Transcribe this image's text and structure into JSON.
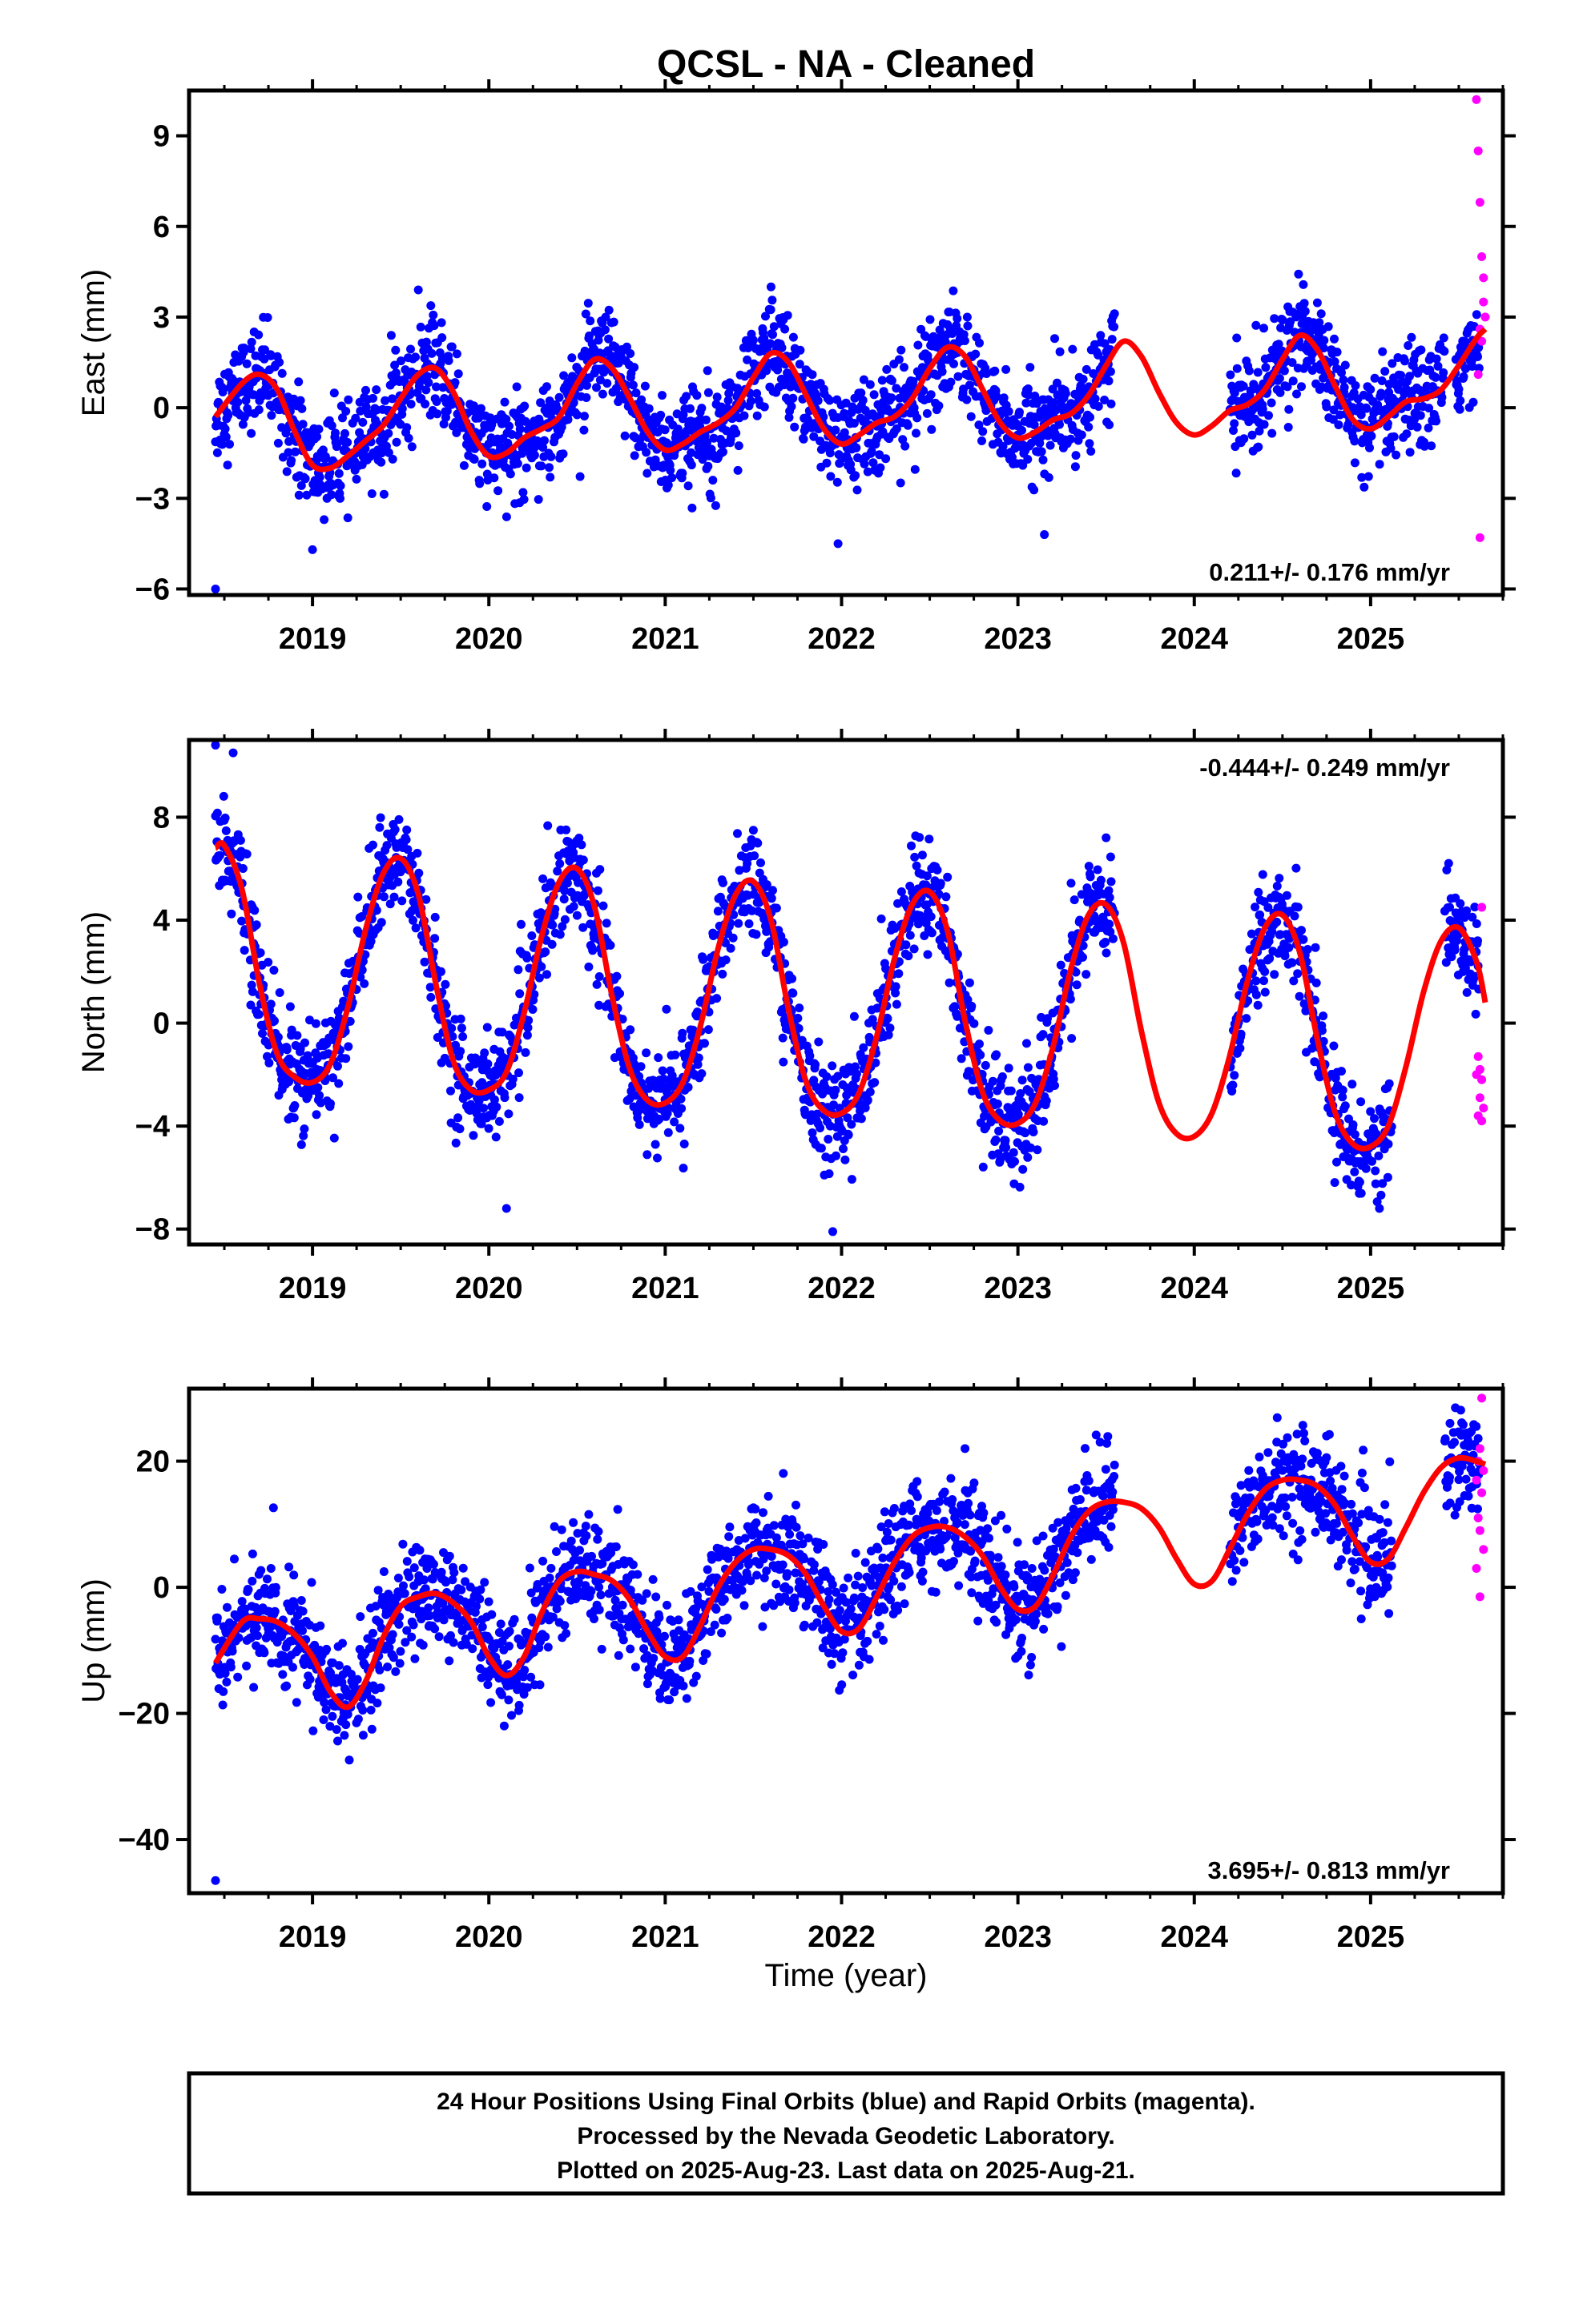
{
  "title": "QCSL  - NA - Cleaned",
  "xlabel": "Time (year)",
  "footer": {
    "line1": "24 Hour Positions Using Final Orbits (blue) and Rapid Orbits (magenta).",
    "line2": "Processed by the Nevada Geodetic Laboratory.",
    "line3": "Plotted on 2025-Aug-23. Last data on 2025-Aug-21."
  },
  "colors": {
    "final": "#0000ff",
    "rapid": "#ff00ff",
    "model": "#ff0000"
  },
  "chart_data": [
    {
      "type": "scatter",
      "name": "east",
      "ylabel": "East (mm)",
      "rate": "0.211+/- 0.176 mm/yr",
      "rate_position": "bottom-right",
      "xlim": [
        2018.3,
        2025.75
      ],
      "ylim": [
        -6.2,
        10.5
      ],
      "yticks": [
        -6,
        -3,
        0,
        3,
        6,
        9
      ],
      "ytick_labels": [
        "−6",
        "−3",
        "0",
        "3",
        "6",
        "9"
      ],
      "xticks": [
        2019,
        2020,
        2021,
        2022,
        2023,
        2024,
        2025
      ],
      "xtick_labels": [
        "2019",
        "2020",
        "2021",
        "2022",
        "2023",
        "2024",
        "2025"
      ],
      "model": [
        [
          2018.45,
          -0.3
        ],
        [
          2018.6,
          0.8
        ],
        [
          2018.7,
          1.1
        ],
        [
          2018.8,
          0.6
        ],
        [
          2018.9,
          -0.8
        ],
        [
          2019.0,
          -1.9
        ],
        [
          2019.1,
          -2.0
        ],
        [
          2019.2,
          -1.6
        ],
        [
          2019.3,
          -1.1
        ],
        [
          2019.4,
          -0.6
        ],
        [
          2019.5,
          0.3
        ],
        [
          2019.6,
          1.1
        ],
        [
          2019.7,
          1.3
        ],
        [
          2019.8,
          0.5
        ],
        [
          2019.9,
          -0.8
        ],
        [
          2020.0,
          -1.6
        ],
        [
          2020.1,
          -1.5
        ],
        [
          2020.2,
          -1.0
        ],
        [
          2020.3,
          -0.7
        ],
        [
          2020.4,
          -0.3
        ],
        [
          2020.5,
          0.8
        ],
        [
          2020.6,
          1.6
        ],
        [
          2020.7,
          1.3
        ],
        [
          2020.8,
          0.3
        ],
        [
          2020.9,
          -0.8
        ],
        [
          2021.0,
          -1.4
        ],
        [
          2021.1,
          -1.2
        ],
        [
          2021.2,
          -0.8
        ],
        [
          2021.3,
          -0.5
        ],
        [
          2021.4,
          0.0
        ],
        [
          2021.5,
          1.0
        ],
        [
          2021.6,
          1.8
        ],
        [
          2021.7,
          1.5
        ],
        [
          2021.8,
          0.4
        ],
        [
          2021.9,
          -0.7
        ],
        [
          2022.0,
          -1.2
        ],
        [
          2022.1,
          -0.9
        ],
        [
          2022.2,
          -0.5
        ],
        [
          2022.3,
          -0.3
        ],
        [
          2022.4,
          0.3
        ],
        [
          2022.5,
          1.3
        ],
        [
          2022.6,
          2.0
        ],
        [
          2022.7,
          1.7
        ],
        [
          2022.8,
          0.6
        ],
        [
          2022.9,
          -0.5
        ],
        [
          2023.0,
          -1.0
        ],
        [
          2023.1,
          -0.8
        ],
        [
          2023.2,
          -0.4
        ],
        [
          2023.3,
          -0.2
        ],
        [
          2023.4,
          0.4
        ],
        [
          2023.5,
          1.4
        ],
        [
          2023.6,
          2.2
        ],
        [
          2023.7,
          1.7
        ],
        [
          2023.8,
          0.5
        ],
        [
          2023.9,
          -0.5
        ],
        [
          2024.0,
          -0.9
        ],
        [
          2024.1,
          -0.6
        ],
        [
          2024.2,
          -0.1
        ],
        [
          2024.3,
          0.1
        ],
        [
          2024.4,
          0.6
        ],
        [
          2024.5,
          1.6
        ],
        [
          2024.6,
          2.4
        ],
        [
          2024.7,
          1.9
        ],
        [
          2024.8,
          0.7
        ],
        [
          2024.9,
          -0.4
        ],
        [
          2025.0,
          -0.7
        ],
        [
          2025.1,
          -0.3
        ],
        [
          2025.2,
          0.2
        ],
        [
          2025.3,
          0.3
        ],
        [
          2025.4,
          0.6
        ],
        [
          2025.5,
          1.4
        ],
        [
          2025.6,
          2.3
        ],
        [
          2025.65,
          2.6
        ]
      ],
      "gaps": [
        [
          2023.55,
          2024.2
        ],
        [
          2025.42,
          2025.48
        ]
      ],
      "noise": 0.8,
      "outliers": [
        [
          2018.45,
          -6.0
        ],
        [
          2019.0,
          -4.7
        ],
        [
          2021.98,
          -4.5
        ],
        [
          2023.15,
          -4.2
        ],
        [
          2019.6,
          3.9
        ],
        [
          2021.6,
          4.0
        ]
      ],
      "rapid": [
        [
          2025.6,
          10.2
        ],
        [
          2025.61,
          8.5
        ],
        [
          2025.62,
          6.8
        ],
        [
          2025.63,
          5.0
        ],
        [
          2025.64,
          4.3
        ],
        [
          2025.64,
          3.5
        ],
        [
          2025.65,
          3.0
        ],
        [
          2025.62,
          2.6
        ],
        [
          2025.63,
          2.2
        ],
        [
          2025.61,
          1.1
        ],
        [
          2025.62,
          -4.3
        ]
      ]
    },
    {
      "type": "scatter",
      "name": "north",
      "ylabel": "North (mm)",
      "rate": "-0.444+/- 0.249 mm/yr",
      "rate_position": "top-right",
      "xlim": [
        2018.3,
        2025.75
      ],
      "ylim": [
        -8.6,
        11.0
      ],
      "yticks": [
        -8,
        -4,
        0,
        4,
        8
      ],
      "ytick_labels": [
        "−8",
        "−4",
        "0",
        "4",
        "8"
      ],
      "xticks": [
        2019,
        2020,
        2021,
        2022,
        2023,
        2024,
        2025
      ],
      "xtick_labels": [
        "2019",
        "2020",
        "2021",
        "2022",
        "2023",
        "2024",
        "2025"
      ],
      "model": [
        [
          2018.45,
          6.8
        ],
        [
          2018.5,
          6.9
        ],
        [
          2018.6,
          5.2
        ],
        [
          2018.7,
          1.5
        ],
        [
          2018.8,
          -1.2
        ],
        [
          2018.9,
          -2.1
        ],
        [
          2019.0,
          -2.3
        ],
        [
          2019.1,
          -1.6
        ],
        [
          2019.2,
          0.6
        ],
        [
          2019.3,
          3.6
        ],
        [
          2019.4,
          5.8
        ],
        [
          2019.5,
          6.4
        ],
        [
          2019.6,
          5.0
        ],
        [
          2019.7,
          1.5
        ],
        [
          2019.8,
          -1.5
        ],
        [
          2019.9,
          -2.6
        ],
        [
          2020.0,
          -2.6
        ],
        [
          2020.1,
          -1.9
        ],
        [
          2020.2,
          0.4
        ],
        [
          2020.3,
          3.4
        ],
        [
          2020.4,
          5.5
        ],
        [
          2020.5,
          6.0
        ],
        [
          2020.6,
          4.5
        ],
        [
          2020.7,
          1.0
        ],
        [
          2020.8,
          -1.8
        ],
        [
          2020.9,
          -3.0
        ],
        [
          2021.0,
          -3.1
        ],
        [
          2021.1,
          -2.3
        ],
        [
          2021.2,
          -0.1
        ],
        [
          2021.3,
          2.9
        ],
        [
          2021.4,
          5.0
        ],
        [
          2021.5,
          5.5
        ],
        [
          2021.6,
          4.0
        ],
        [
          2021.7,
          0.5
        ],
        [
          2021.8,
          -2.3
        ],
        [
          2021.9,
          -3.4
        ],
        [
          2022.0,
          -3.5
        ],
        [
          2022.1,
          -2.7
        ],
        [
          2022.2,
          -0.5
        ],
        [
          2022.3,
          2.5
        ],
        [
          2022.4,
          4.6
        ],
        [
          2022.5,
          5.1
        ],
        [
          2022.6,
          3.6
        ],
        [
          2022.7,
          0.1
        ],
        [
          2022.8,
          -2.7
        ],
        [
          2022.9,
          -3.8
        ],
        [
          2023.0,
          -3.9
        ],
        [
          2023.1,
          -3.1
        ],
        [
          2023.2,
          -0.9
        ],
        [
          2023.3,
          2.1
        ],
        [
          2023.4,
          4.2
        ],
        [
          2023.5,
          4.6
        ],
        [
          2023.6,
          3.1
        ],
        [
          2023.7,
          -0.3
        ],
        [
          2023.8,
          -3.1
        ],
        [
          2023.9,
          -4.3
        ],
        [
          2024.0,
          -4.4
        ],
        [
          2024.1,
          -3.5
        ],
        [
          2024.2,
          -1.3
        ],
        [
          2024.3,
          1.6
        ],
        [
          2024.4,
          3.7
        ],
        [
          2024.5,
          4.2
        ],
        [
          2024.6,
          2.7
        ],
        [
          2024.7,
          -0.7
        ],
        [
          2024.8,
          -3.5
        ],
        [
          2024.9,
          -4.7
        ],
        [
          2025.0,
          -4.8
        ],
        [
          2025.1,
          -4.0
        ],
        [
          2025.2,
          -1.7
        ],
        [
          2025.3,
          1.2
        ],
        [
          2025.4,
          3.2
        ],
        [
          2025.5,
          3.7
        ],
        [
          2025.6,
          2.4
        ],
        [
          2025.65,
          0.8
        ]
      ],
      "gaps": [
        [
          2023.55,
          2024.2
        ],
        [
          2025.12,
          2025.42
        ]
      ],
      "noise": 1.0,
      "outliers": [
        [
          2018.45,
          10.8
        ],
        [
          2018.55,
          10.5
        ],
        [
          2020.1,
          -7.2
        ],
        [
          2021.95,
          -8.1
        ],
        [
          2025.05,
          -7.2
        ],
        [
          2023.5,
          7.2
        ]
      ],
      "rapid": [
        [
          2025.63,
          4.5
        ],
        [
          2025.61,
          -1.3
        ],
        [
          2025.62,
          -1.8
        ],
        [
          2025.6,
          -2.0
        ],
        [
          2025.63,
          -2.2
        ],
        [
          2025.62,
          -2.9
        ],
        [
          2025.64,
          -3.3
        ],
        [
          2025.61,
          -3.6
        ],
        [
          2025.63,
          -3.8
        ]
      ]
    },
    {
      "type": "scatter",
      "name": "up",
      "ylabel": "Up (mm)",
      "rate": "3.695+/- 0.813 mm/yr",
      "rate_position": "bottom-right",
      "xlim": [
        2018.3,
        2025.75
      ],
      "ylim": [
        -48.5,
        31.5
      ],
      "yticks": [
        -40,
        -20,
        0,
        20
      ],
      "ytick_labels": [
        "−40",
        "−20",
        "0",
        "20"
      ],
      "xticks": [
        2019,
        2020,
        2021,
        2022,
        2023,
        2024,
        2025
      ],
      "xtick_labels": [
        "2019",
        "2020",
        "2021",
        "2022",
        "2023",
        "2024",
        "2025"
      ],
      "model": [
        [
          2018.45,
          -12
        ],
        [
          2018.6,
          -5.5
        ],
        [
          2018.7,
          -5
        ],
        [
          2018.8,
          -5.5
        ],
        [
          2018.9,
          -7.5
        ],
        [
          2019.0,
          -11
        ],
        [
          2019.1,
          -16.5
        ],
        [
          2019.2,
          -19
        ],
        [
          2019.3,
          -15
        ],
        [
          2019.4,
          -8
        ],
        [
          2019.5,
          -3
        ],
        [
          2019.6,
          -1.5
        ],
        [
          2019.7,
          -1
        ],
        [
          2019.8,
          -2.5
        ],
        [
          2019.9,
          -5.5
        ],
        [
          2020.0,
          -11
        ],
        [
          2020.1,
          -14
        ],
        [
          2020.2,
          -11
        ],
        [
          2020.3,
          -4
        ],
        [
          2020.4,
          1
        ],
        [
          2020.5,
          2.5
        ],
        [
          2020.6,
          2
        ],
        [
          2020.7,
          1
        ],
        [
          2020.8,
          -2
        ],
        [
          2020.9,
          -7
        ],
        [
          2021.0,
          -11
        ],
        [
          2021.1,
          -11
        ],
        [
          2021.2,
          -6
        ],
        [
          2021.3,
          0
        ],
        [
          2021.4,
          4
        ],
        [
          2021.5,
          6
        ],
        [
          2021.6,
          6
        ],
        [
          2021.7,
          5
        ],
        [
          2021.8,
          2
        ],
        [
          2021.9,
          -3
        ],
        [
          2022.0,
          -7
        ],
        [
          2022.1,
          -6.5
        ],
        [
          2022.2,
          -1.5
        ],
        [
          2022.3,
          4
        ],
        [
          2022.4,
          8
        ],
        [
          2022.5,
          9.5
        ],
        [
          2022.6,
          9.5
        ],
        [
          2022.7,
          8
        ],
        [
          2022.8,
          5
        ],
        [
          2022.9,
          0
        ],
        [
          2023.0,
          -3.5
        ],
        [
          2023.1,
          -3
        ],
        [
          2023.2,
          2
        ],
        [
          2023.3,
          8
        ],
        [
          2023.4,
          12
        ],
        [
          2023.5,
          13.5
        ],
        [
          2023.6,
          13.5
        ],
        [
          2023.7,
          12.5
        ],
        [
          2023.8,
          9.5
        ],
        [
          2023.9,
          4.5
        ],
        [
          2024.0,
          0.5
        ],
        [
          2024.1,
          1
        ],
        [
          2024.2,
          6
        ],
        [
          2024.3,
          11.5
        ],
        [
          2024.4,
          15.5
        ],
        [
          2024.5,
          17
        ],
        [
          2024.6,
          17
        ],
        [
          2024.7,
          16
        ],
        [
          2024.8,
          13
        ],
        [
          2024.9,
          8
        ],
        [
          2025.0,
          4
        ],
        [
          2025.1,
          4.5
        ],
        [
          2025.2,
          9.5
        ],
        [
          2025.3,
          15
        ],
        [
          2025.4,
          19
        ],
        [
          2025.5,
          20.5
        ],
        [
          2025.6,
          20
        ],
        [
          2025.65,
          19.5
        ]
      ],
      "gaps": [
        [
          2023.55,
          2024.2
        ],
        [
          2025.12,
          2025.42
        ]
      ],
      "noise": 4.2,
      "outliers": [
        [
          2018.45,
          -46.5
        ],
        [
          2022.7,
          22
        ],
        [
          2024.75,
          24
        ],
        [
          2025.45,
          26
        ]
      ],
      "rapid": [
        [
          2025.63,
          30
        ],
        [
          2025.62,
          22
        ],
        [
          2025.61,
          20
        ],
        [
          2025.64,
          18.5
        ],
        [
          2025.6,
          17
        ],
        [
          2025.63,
          15
        ],
        [
          2025.61,
          11
        ],
        [
          2025.62,
          9
        ],
        [
          2025.64,
          6
        ],
        [
          2025.6,
          3
        ],
        [
          2025.62,
          -1.5
        ]
      ]
    }
  ]
}
